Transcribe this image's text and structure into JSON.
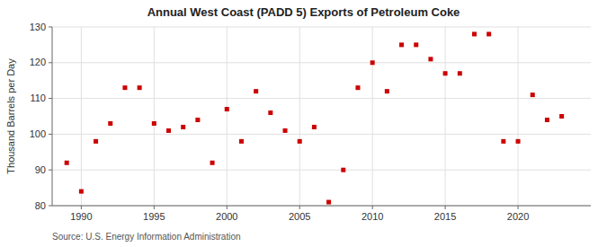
{
  "chart_data": {
    "type": "scatter",
    "title": "Annual West Coast (PADD 5) Exports of Petroleum Coke",
    "ylabel": "Thousand Barrels per Day",
    "source": "Source: U.S. Energy Information Administration",
    "x": [
      1989,
      1990,
      1991,
      1992,
      1993,
      1994,
      1995,
      1996,
      1997,
      1998,
      1999,
      2000,
      2001,
      2002,
      2003,
      2004,
      2005,
      2006,
      2007,
      2008,
      2009,
      2010,
      2011,
      2012,
      2013,
      2014,
      2015,
      2016,
      2017,
      2018,
      2019,
      2020,
      2021,
      2022,
      2023
    ],
    "values": [
      92,
      84,
      98,
      103,
      113,
      113,
      103,
      101,
      102,
      104,
      92,
      107,
      98,
      112,
      106,
      101,
      98,
      102,
      81,
      90,
      113,
      120,
      112,
      125,
      125,
      121,
      117,
      117,
      128,
      128,
      98,
      98,
      111,
      104,
      105
    ],
    "color": "#cc0000",
    "marker": "square",
    "xlim": [
      1988,
      2025
    ],
    "ylim": [
      80,
      130
    ],
    "xticks": [
      1990,
      1995,
      2000,
      2005,
      2010,
      2015,
      2020
    ],
    "yticks": [
      80,
      90,
      100,
      110,
      120,
      130
    ],
    "grid": true
  }
}
